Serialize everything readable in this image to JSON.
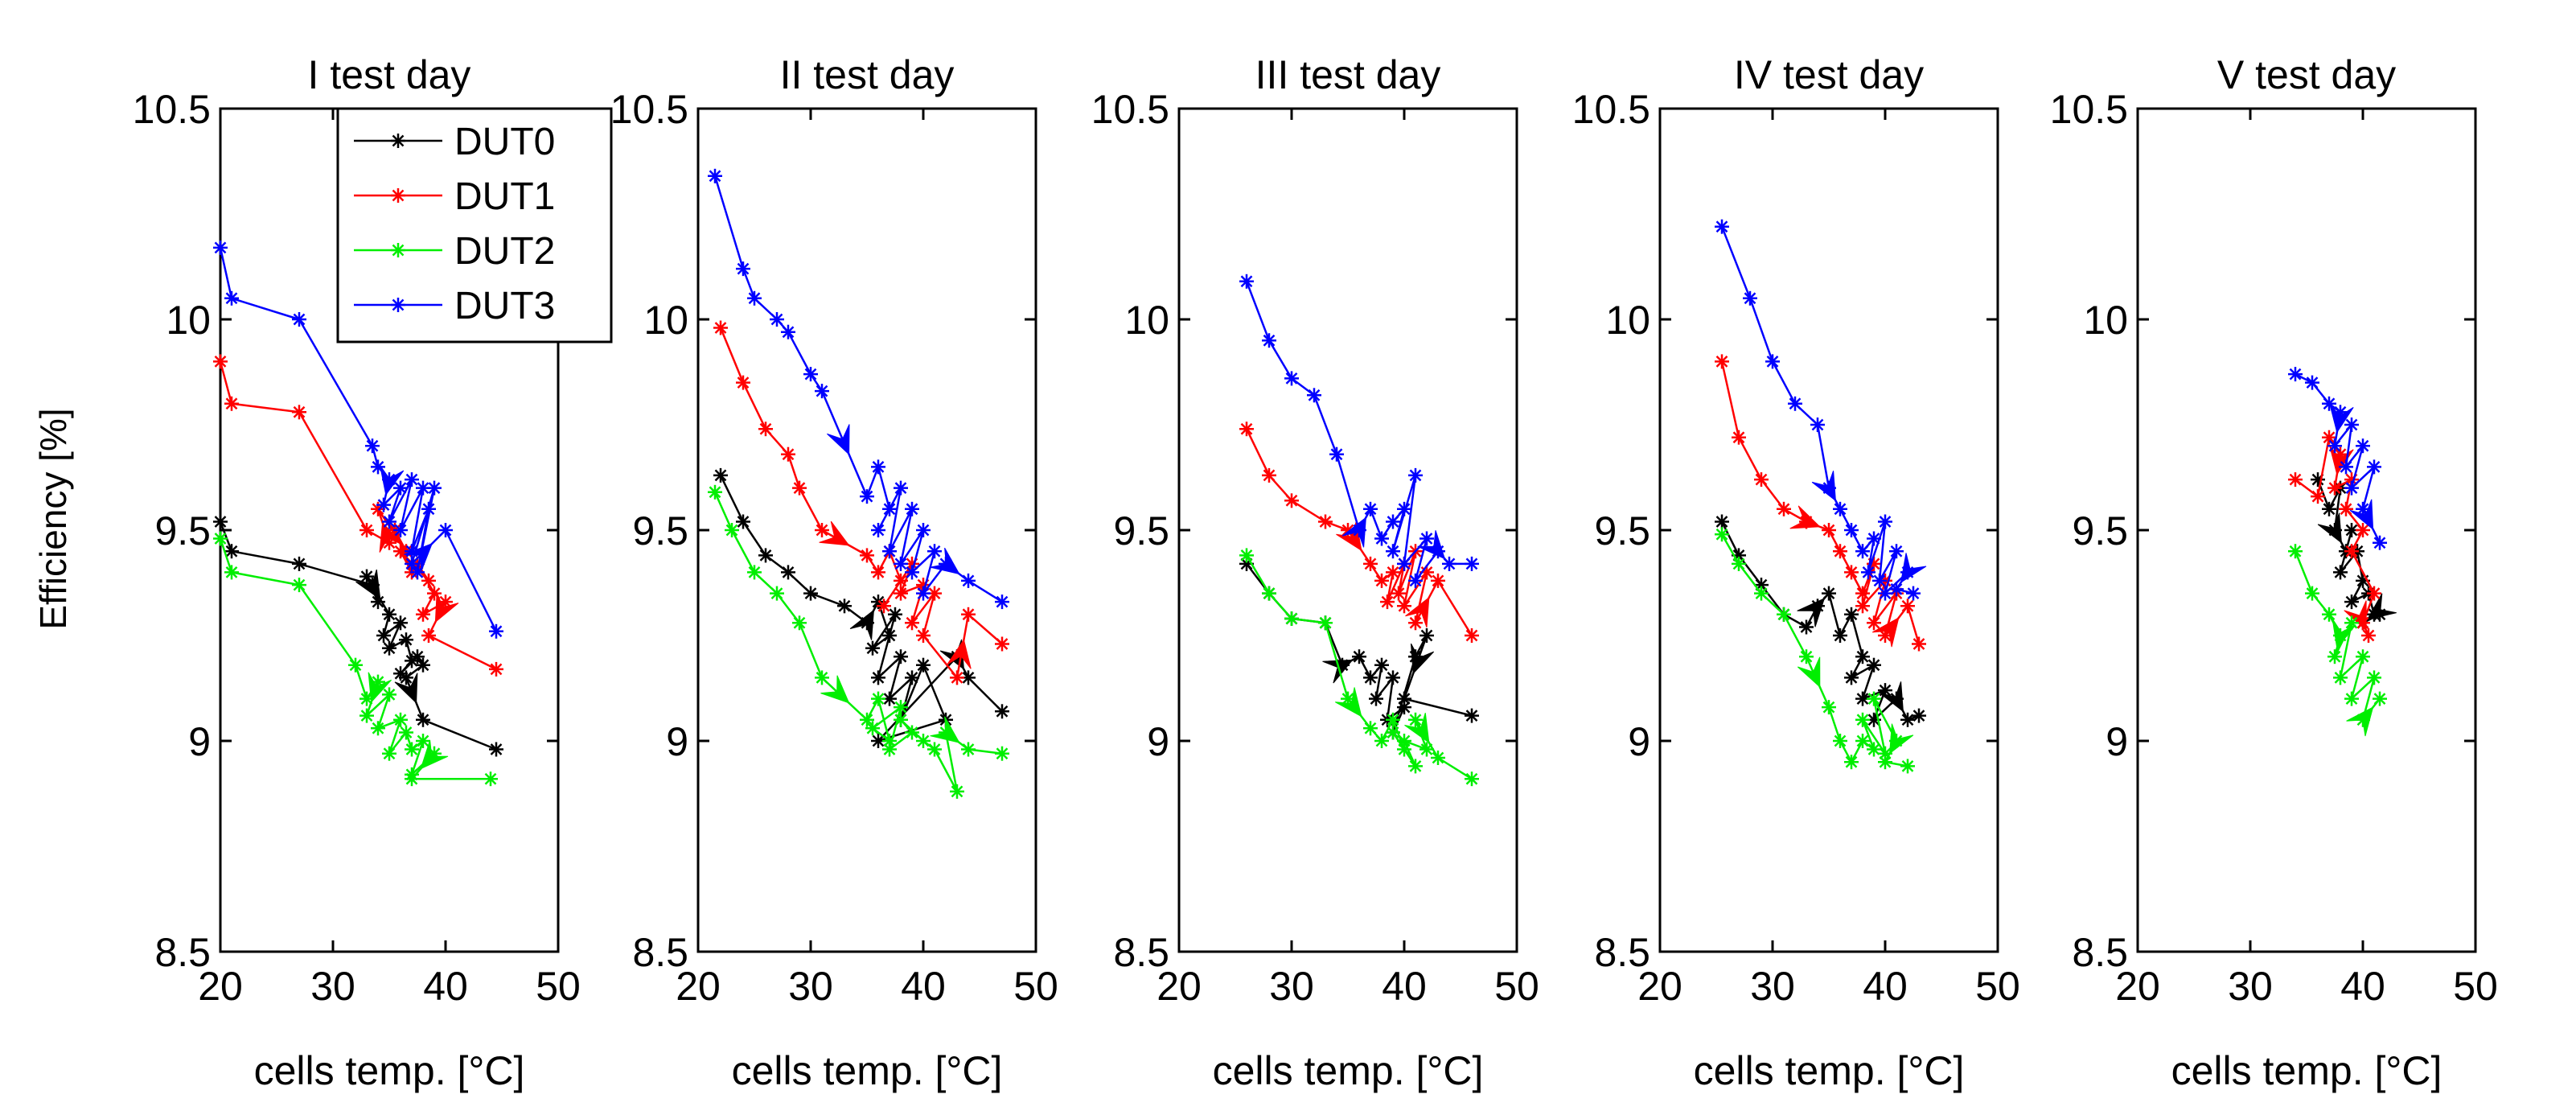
{
  "chart_data": {
    "type": "line",
    "ylabel": "Efficiency [%]",
    "xlabel": "cells temp. [°C]",
    "xlim": [
      20,
      50
    ],
    "ylim": [
      8.5,
      10.5
    ],
    "xticks": [
      "20",
      "30",
      "40",
      "50"
    ],
    "yticks": [
      "8.5",
      "9",
      "9.5",
      "10",
      "10.5"
    ],
    "legend": {
      "placement": "top-left of first panel",
      "entries": [
        {
          "name": "DUT0",
          "color": "#000000"
        },
        {
          "name": "DUT1",
          "color": "#ff0000"
        },
        {
          "name": "DUT2",
          "color": "#00ee00"
        },
        {
          "name": "DUT3",
          "color": "#0000ff"
        }
      ]
    },
    "panels": [
      {
        "title": "I test day",
        "series": [
          {
            "name": "DUT0",
            "x": [
              20,
              21,
              27,
              33.5,
              34,
              33,
              35,
              34.5,
              36,
              35,
              36.5,
              37,
              36,
              37.5,
              38,
              36.5,
              38,
              44.5
            ],
            "y": [
              9.52,
              9.45,
              9.42,
              9.37,
              9.33,
              9.39,
              9.3,
              9.25,
              9.28,
              9.22,
              9.24,
              9.19,
              9.16,
              9.2,
              9.18,
              9.15,
              9.05,
              8.98
            ]
          },
          {
            "name": "DUT1",
            "x": [
              20,
              21,
              27,
              33,
              35,
              34,
              36.5,
              35.5,
              37,
              36,
              38.5,
              37.5,
              39,
              38,
              40,
              38.5,
              44.5
            ],
            "y": [
              9.9,
              9.8,
              9.78,
              9.5,
              9.47,
              9.55,
              9.45,
              9.5,
              9.4,
              9.45,
              9.38,
              9.42,
              9.35,
              9.3,
              9.33,
              9.25,
              9.17
            ]
          },
          {
            "name": "DUT2",
            "x": [
              20,
              21,
              27,
              32,
              33,
              34,
              33,
              35,
              34,
              36,
              35,
              36.5,
              37,
              38,
              37,
              39,
              37,
              44
            ],
            "y": [
              9.48,
              9.4,
              9.37,
              9.18,
              9.1,
              9.14,
              9.06,
              9.11,
              9.03,
              9.05,
              8.97,
              9.02,
              8.98,
              9.0,
              8.92,
              8.97,
              8.91,
              8.91
            ]
          },
          {
            "name": "DUT3",
            "x": [
              20,
              21,
              27,
              33.5,
              34,
              35,
              34.5,
              36,
              35,
              37,
              36,
              38,
              37,
              38.5,
              37.5,
              39,
              37,
              40,
              44.5
            ],
            "y": [
              10.17,
              10.05,
              10.0,
              9.7,
              9.65,
              9.62,
              9.56,
              9.6,
              9.52,
              9.62,
              9.5,
              9.6,
              9.45,
              9.55,
              9.4,
              9.6,
              9.42,
              9.5,
              9.26
            ]
          }
        ]
      },
      {
        "title": "II test day",
        "series": [
          {
            "name": "DUT0",
            "x": [
              22,
              24,
              26,
              28,
              30,
              33,
              35,
              36,
              37,
              35.5,
              37.5,
              36,
              38,
              37,
              39,
              38,
              40,
              42,
              36,
              43,
              44,
              47
            ],
            "y": [
              9.63,
              9.52,
              9.44,
              9.4,
              9.35,
              9.32,
              9.28,
              9.33,
              9.25,
              9.22,
              9.3,
              9.15,
              9.2,
              9.1,
              9.15,
              9.05,
              9.18,
              9.05,
              9.0,
              9.2,
              9.15,
              9.07
            ]
          },
          {
            "name": "DUT1",
            "x": [
              22,
              24,
              26,
              28,
              29,
              31,
              35,
              36,
              37,
              38,
              36.5,
              39,
              38,
              40,
              39,
              41,
              40,
              43,
              44,
              47
            ],
            "y": [
              9.98,
              9.85,
              9.74,
              9.68,
              9.6,
              9.5,
              9.44,
              9.4,
              9.45,
              9.38,
              9.32,
              9.42,
              9.35,
              9.37,
              9.28,
              9.35,
              9.25,
              9.15,
              9.3,
              9.23
            ]
          },
          {
            "name": "DUT2",
            "x": [
              21.5,
              23,
              25,
              27,
              29,
              31,
              35,
              36,
              37,
              35.5,
              38,
              37,
              39,
              38,
              40,
              41,
              43,
              42,
              44,
              47
            ],
            "y": [
              9.59,
              9.5,
              9.4,
              9.35,
              9.28,
              9.15,
              9.05,
              9.1,
              9.0,
              9.03,
              9.08,
              8.98,
              9.02,
              9.05,
              9.0,
              8.98,
              8.88,
              9.02,
              8.98,
              8.97
            ]
          },
          {
            "name": "DUT3",
            "x": [
              21.5,
              24,
              25,
              27,
              28,
              30,
              31,
              35,
              36,
              37,
              36,
              38,
              37,
              39,
              38,
              40,
              39,
              41,
              40,
              42,
              44,
              47
            ],
            "y": [
              10.34,
              10.12,
              10.05,
              10.0,
              9.97,
              9.87,
              9.83,
              9.58,
              9.65,
              9.55,
              9.5,
              9.6,
              9.45,
              9.55,
              9.42,
              9.5,
              9.4,
              9.45,
              9.35,
              9.42,
              9.38,
              9.33
            ]
          }
        ]
      },
      {
        "title": "III test day",
        "series": [
          {
            "name": "DUT0",
            "x": [
              26,
              28,
              30,
              33,
              34.5,
              36,
              37,
              38,
              37.5,
              39,
              38.5,
              40,
              39,
              41,
              42,
              40,
              46
            ],
            "y": [
              9.42,
              9.35,
              9.29,
              9.28,
              9.18,
              9.2,
              9.15,
              9.18,
              9.1,
              9.15,
              9.05,
              9.08,
              9.02,
              9.2,
              9.25,
              9.1,
              9.06
            ]
          },
          {
            "name": "DUT1",
            "x": [
              26,
              28,
              30,
              33,
              35,
              37,
              38,
              39,
              38.5,
              40,
              39.5,
              41,
              40,
              42,
              41,
              43,
              46
            ],
            "y": [
              9.74,
              9.63,
              9.57,
              9.52,
              9.5,
              9.42,
              9.38,
              9.4,
              9.33,
              9.42,
              9.35,
              9.45,
              9.32,
              9.4,
              9.28,
              9.38,
              9.25
            ]
          },
          {
            "name": "DUT2",
            "x": [
              26,
              28,
              30,
              33,
              35,
              37,
              38,
              39,
              40,
              39,
              41,
              40,
              42,
              41,
              43,
              46
            ],
            "y": [
              9.44,
              9.35,
              9.29,
              9.28,
              9.1,
              9.03,
              9.0,
              9.05,
              8.98,
              9.02,
              8.94,
              9.0,
              8.98,
              9.05,
              8.96,
              8.91
            ]
          },
          {
            "name": "DUT3",
            "x": [
              26,
              28,
              30,
              32,
              34,
              36,
              37,
              38,
              39,
              40,
              39,
              41,
              40,
              42,
              41,
              43,
              44,
              46
            ],
            "y": [
              10.09,
              9.95,
              9.86,
              9.82,
              9.68,
              9.5,
              9.55,
              9.48,
              9.52,
              9.55,
              9.45,
              9.63,
              9.42,
              9.48,
              9.38,
              9.45,
              9.42,
              9.42
            ]
          }
        ]
      },
      {
        "title": "IV test day",
        "series": [
          {
            "name": "DUT0",
            "x": [
              25.5,
              27,
              29,
              31,
              33,
              34,
              35,
              36,
              37,
              38,
              37,
              39,
              38,
              40,
              39,
              41,
              42,
              43
            ],
            "y": [
              9.52,
              9.44,
              9.37,
              9.3,
              9.27,
              9.32,
              9.35,
              9.25,
              9.3,
              9.2,
              9.15,
              9.18,
              9.1,
              9.12,
              9.05,
              9.1,
              9.05,
              9.06
            ]
          },
          {
            "name": "DUT1",
            "x": [
              25.5,
              27,
              29,
              31,
              33,
              35,
              36,
              37,
              38,
              39,
              38,
              40,
              39,
              41,
              40,
              42,
              43
            ],
            "y": [
              9.9,
              9.72,
              9.62,
              9.55,
              9.52,
              9.5,
              9.45,
              9.4,
              9.35,
              9.42,
              9.32,
              9.38,
              9.28,
              9.35,
              9.25,
              9.32,
              9.23
            ]
          },
          {
            "name": "DUT2",
            "x": [
              25.5,
              27,
              29,
              31,
              33,
              35,
              36,
              37,
              38,
              39,
              38,
              40,
              39,
              41,
              40,
              42
            ],
            "y": [
              9.49,
              9.42,
              9.35,
              9.3,
              9.2,
              9.08,
              9.0,
              8.95,
              9.0,
              8.98,
              9.05,
              8.97,
              9.1,
              9.0,
              8.95,
              8.94
            ]
          },
          {
            "name": "DUT3",
            "x": [
              25.5,
              28,
              30,
              32,
              34,
              35,
              36,
              37,
              38,
              39,
              38.5,
              40,
              39.5,
              41,
              40,
              42,
              41,
              42.5
            ],
            "y": [
              10.22,
              10.05,
              9.9,
              9.8,
              9.75,
              9.6,
              9.55,
              9.5,
              9.45,
              9.48,
              9.4,
              9.52,
              9.38,
              9.45,
              9.35,
              9.4,
              9.36,
              9.35
            ]
          }
        ]
      },
      {
        "title": "V test day",
        "series": [
          {
            "name": "DUT0",
            "x": [
              36,
              37,
              38,
              37.5,
              38.5,
              39,
              38,
              39.5,
              40,
              39,
              40.5,
              41,
              40,
              41.5
            ],
            "y": [
              9.62,
              9.55,
              9.6,
              9.5,
              9.45,
              9.5,
              9.4,
              9.45,
              9.38,
              9.33,
              9.35,
              9.3,
              9.28,
              9.3
            ]
          },
          {
            "name": "DUT1",
            "x": [
              34,
              36,
              37,
              38,
              37.5,
              39,
              38.5,
              40,
              39,
              41,
              40,
              40.5
            ],
            "y": [
              9.62,
              9.58,
              9.72,
              9.68,
              9.6,
              9.62,
              9.55,
              9.5,
              9.45,
              9.35,
              9.28,
              9.25
            ]
          },
          {
            "name": "DUT2",
            "x": [
              34,
              35.5,
              37,
              38,
              37.5,
              39,
              38,
              40,
              39,
              41,
              40,
              41.5
            ],
            "y": [
              9.45,
              9.35,
              9.3,
              9.25,
              9.2,
              9.28,
              9.15,
              9.2,
              9.1,
              9.15,
              9.05,
              9.1
            ]
          },
          {
            "name": "DUT3",
            "x": [
              34,
              35.5,
              37,
              38,
              37.5,
              39,
              38.5,
              40,
              39,
              41,
              40,
              41.5
            ],
            "y": [
              9.87,
              9.85,
              9.8,
              9.78,
              9.7,
              9.75,
              9.65,
              9.7,
              9.6,
              9.65,
              9.55,
              9.47
            ]
          }
        ]
      }
    ]
  }
}
